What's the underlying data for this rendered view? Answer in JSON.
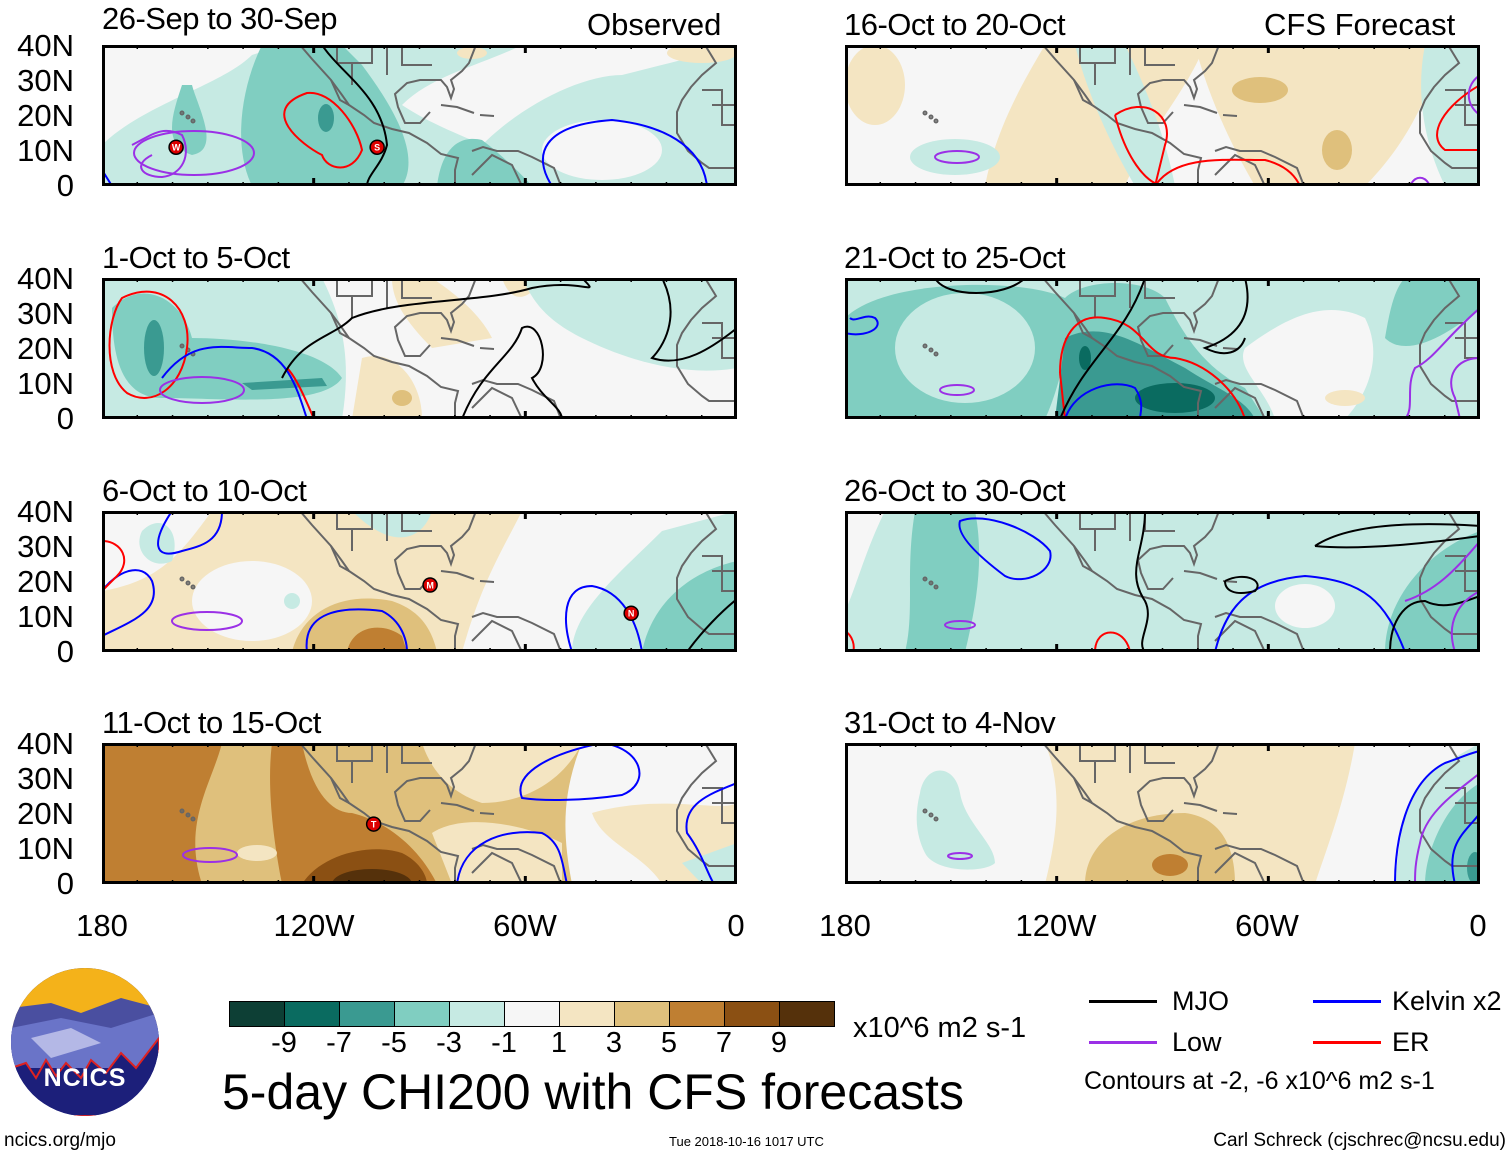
{
  "chart_data": {
    "type": "heatmap",
    "title": "5-day CHI200 with CFS forecasts",
    "units": "x10^6 m2 s-1",
    "lat_ticks": [
      "40N",
      "30N",
      "20N",
      "10N",
      "0"
    ],
    "lon_ticks": [
      "180",
      "120W",
      "60W",
      "0"
    ],
    "lat_range": [
      0,
      40
    ],
    "lon_range": [
      -180,
      0
    ],
    "colorbar": {
      "labels": [
        "-9",
        "-7",
        "-5",
        "-3",
        "-1",
        "1",
        "3",
        "5",
        "7",
        "9"
      ],
      "colors": [
        "#0d3f35",
        "#0a6b60",
        "#3a9a91",
        "#80cec1",
        "#c6eae3",
        "#f6f6f6",
        "#f4e5c2",
        "#dfc07c",
        "#bf7f32",
        "#8b5013",
        "#55310b"
      ]
    },
    "legend": {
      "items": [
        {
          "label": "MJO",
          "color": "#000000"
        },
        {
          "label": "Kelvin x2",
          "color": "#0000ff"
        },
        {
          "label": "Low",
          "color": "#9b30e6"
        },
        {
          "label": "ER",
          "color": "#ff0000"
        }
      ],
      "contour_note": "Contours at -2, -6 x10^6 m2 s-1"
    },
    "panels": [
      {
        "title": "26-Sep to 30-Sep",
        "tag": "Observed",
        "storms": [
          {
            "letter": "W",
            "lon": -159,
            "lat": 11
          },
          {
            "letter": "S",
            "lon": -102,
            "lat": 11
          }
        ]
      },
      {
        "title": "1-Oct to 5-Oct",
        "storms": []
      },
      {
        "title": "6-Oct to 10-Oct",
        "storms": [
          {
            "letter": "M",
            "lon": -87,
            "lat": 19
          },
          {
            "letter": "N",
            "lon": -30,
            "lat": 11
          }
        ]
      },
      {
        "title": "11-Oct to 15-Oct",
        "storms": [
          {
            "letter": "T",
            "lon": -103,
            "lat": 17
          }
        ]
      },
      {
        "title": "16-Oct to 20-Oct",
        "tag": "CFS Forecast",
        "storms": []
      },
      {
        "title": "21-Oct to 25-Oct",
        "storms": []
      },
      {
        "title": "26-Oct to 30-Oct",
        "storms": []
      },
      {
        "title": "31-Oct to 4-Nov",
        "storms": []
      }
    ]
  },
  "footer": {
    "logo_text": "NCICS",
    "url": "ncics.org/mjo",
    "timestamp": "Tue 2018-10-16 1017 UTC",
    "author": "Carl Schreck (cjschrec@ncsu.edu)"
  }
}
